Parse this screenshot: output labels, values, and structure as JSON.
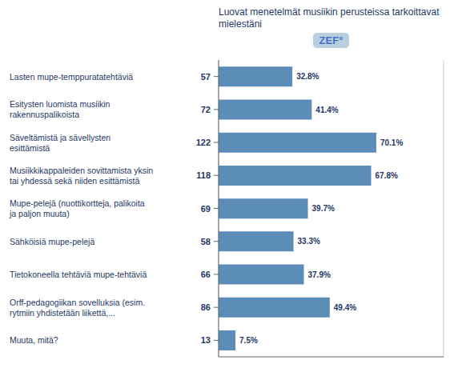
{
  "chart_data": {
    "type": "bar",
    "title": "Luovat menetelmät musiikin perusteissa tarkoittavat\nmielestäni",
    "annotation": "ZEF°",
    "orientation": "horizontal",
    "categories": [
      "Lasten mupe-temppuratatehtäviä",
      "Esitysten luomista musiikin\nrakennuspalikoista",
      "Säveltämistä ja sävellysten\nesittämistä",
      "Musiikkikappaleiden sovittamista yksin\ntai yhdessä sekä niiden esittämistä",
      "Mupe-pelejä (nuottikortteja, palikoita\nja paljon muuta)",
      "Sähköisiä mupe-pelejä",
      "Tietokoneella tehtäviä mupe-tehtäviä",
      "Orff-pedagogiikan sovelluksia (esim.\nrytmiin yhdistetään liikettä,...",
      "Muuta, mitä?"
    ],
    "values": [
      32.8,
      41.4,
      70.1,
      67.8,
      39.7,
      33.3,
      37.9,
      49.4,
      7.5
    ],
    "value_labels": [
      "32.8%",
      "41.4%",
      "70.1%",
      "67.8%",
      "39.7%",
      "33.3%",
      "37.9%",
      "49.4%",
      "7.5%"
    ],
    "counts": [
      57,
      72,
      122,
      118,
      69,
      58,
      66,
      86,
      13
    ],
    "color": "#5b8db8",
    "xlim": [
      0,
      100
    ],
    "xticks": [
      0,
      12.5,
      25,
      37.5,
      50,
      62.5,
      75,
      87.5,
      100
    ],
    "grid": true,
    "tick_labels": false,
    "data_labels": true
  }
}
